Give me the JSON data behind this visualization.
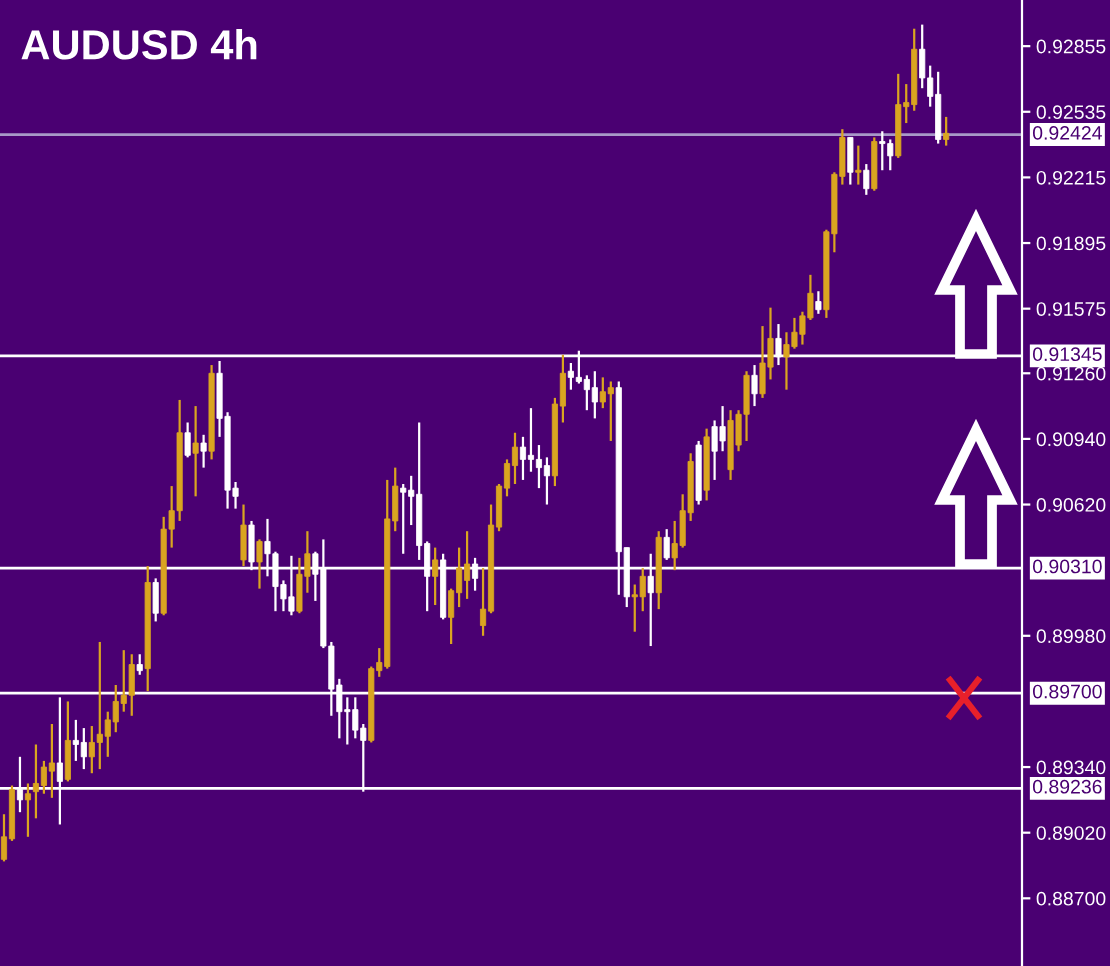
{
  "chart_data": {
    "type": "candlestick",
    "title": "AUDUSD 4h",
    "categories": [
      null,
      null,
      null,
      null,
      null,
      null,
      null,
      null,
      null,
      null,
      null,
      null,
      null,
      null,
      null,
      null,
      null,
      null,
      null,
      null,
      null,
      null,
      null,
      null,
      null,
      null,
      null,
      null,
      null,
      null,
      null,
      null,
      null,
      null,
      null,
      null,
      null,
      null,
      null,
      null,
      null,
      null,
      null,
      null,
      null,
      null,
      null,
      null,
      null,
      null,
      null,
      null,
      null,
      null,
      null,
      null,
      null,
      null,
      null,
      null,
      null,
      null,
      null,
      null,
      null,
      null,
      null,
      null,
      null,
      null,
      null,
      null,
      null,
      null,
      null,
      null,
      null,
      null,
      null,
      null,
      null,
      null,
      null,
      null,
      null,
      null,
      null,
      null,
      null,
      null,
      null,
      null,
      null,
      null,
      null,
      null,
      null,
      null,
      null,
      null,
      null,
      null,
      null,
      null,
      null,
      null,
      null,
      null,
      null,
      null,
      null,
      null,
      null,
      null,
      null,
      null,
      null,
      null,
      null,
      null,
      null,
      null,
      null,
      null,
      null,
      null,
      null,
      null
    ],
    "ohlc": [
      [
        0.8889,
        0.8911,
        0.8888,
        0.89
      ],
      [
        0.8899,
        0.8925,
        0.8898,
        0.8923
      ],
      [
        0.8923,
        0.8939,
        0.8912,
        0.8918
      ],
      [
        0.8918,
        0.8926,
        0.89,
        0.8921
      ],
      [
        0.8922,
        0.8945,
        0.8909,
        0.8926
      ],
      [
        0.8925,
        0.8937,
        0.8921,
        0.8934
      ],
      [
        0.8932,
        0.8955,
        0.8919,
        0.8936
      ],
      [
        0.8936,
        0.8968,
        0.8906,
        0.8927
      ],
      [
        0.8928,
        0.8966,
        0.8927,
        0.8947
      ],
      [
        0.8947,
        0.8957,
        0.8937,
        0.8945
      ],
      [
        0.8946,
        0.8953,
        0.8933,
        0.8939
      ],
      [
        0.8939,
        0.8954,
        0.8931,
        0.8946
      ],
      [
        0.8946,
        0.8995,
        0.8933,
        0.895
      ],
      [
        0.8949,
        0.8961,
        0.8939,
        0.8957
      ],
      [
        0.8956,
        0.8974,
        0.8951,
        0.8966
      ],
      [
        0.8965,
        0.8991,
        0.8961,
        0.8969
      ],
      [
        0.8969,
        0.8989,
        0.8959,
        0.8984
      ],
      [
        0.8984,
        0.8989,
        0.8979,
        0.8981
      ],
      [
        0.8982,
        0.9032,
        0.8971,
        0.9024
      ],
      [
        0.9024,
        0.9026,
        0.9005,
        0.9009
      ],
      [
        0.9009,
        0.9056,
        0.9008,
        0.905
      ],
      [
        0.905,
        0.9071,
        0.9041,
        0.9059
      ],
      [
        0.9059,
        0.9113,
        0.9054,
        0.9097
      ],
      [
        0.9097,
        0.9102,
        0.9085,
        0.9086
      ],
      [
        0.9087,
        0.911,
        0.9066,
        0.9092
      ],
      [
        0.9092,
        0.9096,
        0.908,
        0.9088
      ],
      [
        0.9088,
        0.913,
        0.9084,
        0.9126
      ],
      [
        0.9126,
        0.9132,
        0.9095,
        0.9104
      ],
      [
        0.9105,
        0.9107,
        0.906,
        0.9069
      ],
      [
        0.907,
        0.9073,
        0.906,
        0.9066
      ],
      [
        0.9035,
        0.9062,
        0.9032,
        0.9052
      ],
      [
        0.9052,
        0.9054,
        0.903,
        0.9034
      ],
      [
        0.9034,
        0.9045,
        0.9021,
        0.9044
      ],
      [
        0.9044,
        0.9055,
        0.9027,
        0.9038
      ],
      [
        0.9038,
        0.9039,
        0.901,
        0.9022
      ],
      [
        0.9023,
        0.9025,
        0.901,
        0.9016
      ],
      [
        0.9017,
        0.9037,
        0.9008,
        0.901
      ],
      [
        0.901,
        0.9036,
        0.9009,
        0.9028
      ],
      [
        0.9027,
        0.9049,
        0.9019,
        0.9038
      ],
      [
        0.9038,
        0.9039,
        0.9015,
        0.9028
      ],
      [
        0.9031,
        0.9045,
        0.8992,
        0.8993
      ],
      [
        0.8993,
        0.8995,
        0.8959,
        0.8972
      ],
      [
        0.8974,
        0.8977,
        0.8948,
        0.8961
      ],
      [
        0.8962,
        0.8968,
        0.8945,
        0.8961
      ],
      [
        0.8962,
        0.8968,
        0.8948,
        0.8952
      ],
      [
        0.8953,
        0.8955,
        0.8922,
        0.8947
      ],
      [
        0.8947,
        0.8983,
        0.8946,
        0.8982
      ],
      [
        0.8981,
        0.8992,
        0.8978,
        0.8985
      ],
      [
        0.8983,
        0.9074,
        0.8982,
        0.9055
      ],
      [
        0.9054,
        0.908,
        0.9049,
        0.9071
      ],
      [
        0.907,
        0.9072,
        0.9038,
        0.9068
      ],
      [
        0.9069,
        0.9076,
        0.9052,
        0.9066
      ],
      [
        0.9067,
        0.9102,
        0.9035,
        0.9042
      ],
      [
        0.9043,
        0.9044,
        0.901,
        0.9027
      ],
      [
        0.9027,
        0.9041,
        0.9013,
        0.9035
      ],
      [
        0.9035,
        0.9038,
        0.9006,
        0.9007
      ],
      [
        0.9007,
        0.9021,
        0.8994,
        0.902
      ],
      [
        0.9019,
        0.9041,
        0.9012,
        0.9031
      ],
      [
        0.9025,
        0.9049,
        0.9016,
        0.9033
      ],
      [
        0.9033,
        0.9036,
        0.902,
        0.9026
      ],
      [
        0.9003,
        0.9031,
        0.8998,
        0.9011
      ],
      [
        0.901,
        0.9062,
        0.9009,
        0.9052
      ],
      [
        0.9051,
        0.9072,
        0.9049,
        0.9071
      ],
      [
        0.907,
        0.9084,
        0.9066,
        0.9082
      ],
      [
        0.9081,
        0.9097,
        0.9072,
        0.909
      ],
      [
        0.909,
        0.9095,
        0.9074,
        0.9084
      ],
      [
        0.9086,
        0.9109,
        0.9078,
        0.9084
      ],
      [
        0.9084,
        0.9091,
        0.907,
        0.908
      ],
      [
        0.9081,
        0.9085,
        0.9062,
        0.9076
      ],
      [
        0.9076,
        0.9114,
        0.9071,
        0.9111
      ],
      [
        0.911,
        0.9135,
        0.9102,
        0.9126
      ],
      [
        0.9127,
        0.9131,
        0.9118,
        0.9124
      ],
      [
        0.9124,
        0.9137,
        0.9121,
        0.9122
      ],
      [
        0.9123,
        0.9125,
        0.9108,
        0.9118
      ],
      [
        0.9119,
        0.9127,
        0.9104,
        0.9112
      ],
      [
        0.9112,
        0.9124,
        0.9109,
        0.9117
      ],
      [
        0.9116,
        0.9122,
        0.9093,
        0.9119
      ],
      [
        0.9119,
        0.9122,
        0.9018,
        0.9039
      ],
      [
        0.9041,
        0.9041,
        0.9012,
        0.9017
      ],
      [
        0.9017,
        0.9023,
        0.9,
        0.9018
      ],
      [
        0.9017,
        0.9031,
        0.901,
        0.9027
      ],
      [
        0.9027,
        0.9038,
        0.8993,
        0.9019
      ],
      [
        0.9019,
        0.9049,
        0.9011,
        0.9046
      ],
      [
        0.9046,
        0.905,
        0.9035,
        0.9036
      ],
      [
        0.9036,
        0.9054,
        0.903,
        0.9043
      ],
      [
        0.9042,
        0.9067,
        0.9041,
        0.9059
      ],
      [
        0.9058,
        0.9087,
        0.9054,
        0.9083
      ],
      [
        0.9091,
        0.9093,
        0.9062,
        0.9064
      ],
      [
        0.9069,
        0.9099,
        0.9064,
        0.9095
      ],
      [
        0.91,
        0.9103,
        0.9074,
        0.9088
      ],
      [
        0.91,
        0.911,
        0.9088,
        0.9093
      ],
      [
        0.9079,
        0.9108,
        0.9074,
        0.9103
      ],
      [
        0.9091,
        0.9108,
        0.9088,
        0.9106
      ],
      [
        0.9106,
        0.9127,
        0.9093,
        0.9125
      ],
      [
        0.9125,
        0.913,
        0.911,
        0.9116
      ],
      [
        0.9116,
        0.9149,
        0.9114,
        0.9131
      ],
      [
        0.9129,
        0.9158,
        0.9123,
        0.9143
      ],
      [
        0.9143,
        0.915,
        0.913,
        0.9134
      ],
      [
        0.9134,
        0.9146,
        0.9118,
        0.914
      ],
      [
        0.9139,
        0.9153,
        0.9138,
        0.9146
      ],
      [
        0.9145,
        0.9156,
        0.914,
        0.9154
      ],
      [
        0.9153,
        0.9174,
        0.9152,
        0.9165
      ],
      [
        0.9161,
        0.9166,
        0.9155,
        0.9157
      ],
      [
        0.9157,
        0.9196,
        0.9153,
        0.9195
      ],
      [
        0.9194,
        0.9224,
        0.9185,
        0.9223
      ],
      [
        0.9222,
        0.9245,
        0.9218,
        0.9241
      ],
      [
        0.9241,
        0.9241,
        0.9218,
        0.9224
      ],
      [
        0.9224,
        0.9237,
        0.9218,
        0.9225
      ],
      [
        0.9225,
        0.9228,
        0.9213,
        0.9216
      ],
      [
        0.9216,
        0.9241,
        0.9215,
        0.9239
      ],
      [
        0.9239,
        0.9244,
        0.9225,
        0.9238
      ],
      [
        0.9238,
        0.924,
        0.9225,
        0.9232
      ],
      [
        0.9232,
        0.9272,
        0.9231,
        0.9257
      ],
      [
        0.9256,
        0.9267,
        0.9248,
        0.9258
      ],
      [
        0.9257,
        0.9294,
        0.9254,
        0.9284
      ],
      [
        0.9284,
        0.9296,
        0.9265,
        0.927
      ],
      [
        0.927,
        0.9276,
        0.9256,
        0.9261
      ],
      [
        0.9262,
        0.9273,
        0.9238,
        0.924
      ],
      [
        0.924,
        0.9251,
        0.9237,
        0.9243
      ],
      null,
      null,
      null,
      null,
      null,
      null,
      null,
      null,
      null
    ],
    "colors": [
      "#daa520",
      "#daa520",
      "#ffffff",
      "#daa520",
      "#daa520",
      "#daa520",
      "#daa520",
      "#ffffff",
      "#daa520",
      "#ffffff",
      "#ffffff",
      "#daa520",
      "#daa520",
      "#daa520",
      "#daa520",
      "#daa520",
      "#daa520",
      "#ffffff",
      "#daa520",
      "#ffffff",
      "#daa520",
      "#daa520",
      "#daa520",
      "#ffffff",
      "#daa520",
      "#ffffff",
      "#daa520",
      "#ffffff",
      "#ffffff",
      "#ffffff",
      "#daa520",
      "#ffffff",
      "#daa520",
      "#ffffff",
      "#ffffff",
      "#ffffff",
      "#ffffff",
      "#daa520",
      "#daa520",
      "#ffffff",
      "#ffffff",
      "#ffffff",
      "#ffffff",
      "#ffffff",
      "#ffffff",
      "#ffffff",
      "#daa520",
      "#daa520",
      "#daa520",
      "#daa520",
      "#ffffff",
      "#ffffff",
      "#ffffff",
      "#ffffff",
      "#daa520",
      "#ffffff",
      "#daa520",
      "#daa520",
      "#daa520",
      "#ffffff",
      "#daa520",
      "#daa520",
      "#daa520",
      "#daa520",
      "#daa520",
      "#ffffff",
      "#ffffff",
      "#ffffff",
      "#ffffff",
      "#daa520",
      "#daa520",
      "#ffffff",
      "#ffffff",
      "#ffffff",
      "#ffffff",
      "#daa520",
      "#daa520",
      "#ffffff",
      "#ffffff",
      "#daa520",
      "#daa520",
      "#ffffff",
      "#daa520",
      "#ffffff",
      "#daa520",
      "#daa520",
      "#daa520",
      "#ffffff",
      "#daa520",
      "#ffffff",
      "#ffffff",
      "#daa520",
      "#daa520",
      "#daa520",
      "#ffffff",
      "#daa520",
      "#daa520",
      "#ffffff",
      "#daa520",
      "#daa520",
      "#daa520",
      "#daa520",
      "#ffffff",
      "#daa520",
      "#daa520",
      "#daa520",
      "#ffffff",
      "#daa520",
      "#ffffff",
      "#daa520",
      "#ffffff",
      "#ffffff",
      "#daa520",
      "#daa520",
      "#daa520",
      "#ffffff",
      "#ffffff",
      "#ffffff",
      "#daa520",
      null,
      null,
      null,
      null,
      null,
      null,
      null,
      null,
      null
    ],
    "ylim": [
      0.8837,
      0.9308
    ],
    "yticks": [
      0.92855,
      0.92535,
      0.92215,
      0.91895,
      0.91575,
      {
        "value": 0.9126,
        "label": "0.91260"
      },
      {
        "value": 0.9094,
        "label": "0.90940"
      },
      {
        "value": 0.9062,
        "label": "0.90620"
      },
      {
        "value": 0.8998,
        "label": "0.89980"
      },
      {
        "value": 0.8934,
        "label": "0.89340"
      },
      {
        "value": 0.8902,
        "label": "0.89020"
      },
      {
        "value": 0.887,
        "label": "0.88700"
      }
    ],
    "ref_lines": [
      {
        "axis": "y",
        "value": 0.92424,
        "label": "0.92424",
        "color": "#a898c8"
      },
      {
        "axis": "y",
        "value": 0.91345,
        "label": "0.91345",
        "color": "#ffffff"
      },
      {
        "axis": "y",
        "value": 0.9031,
        "label": "0.90310",
        "color": "#ffffff"
      },
      {
        "axis": "y",
        "value": 0.897,
        "label": "0.89700",
        "color": "#ffffff"
      },
      {
        "axis": "y",
        "value": 0.89236,
        "label": "0.89236",
        "color": "#ffffff"
      }
    ],
    "grid": false
  }
}
